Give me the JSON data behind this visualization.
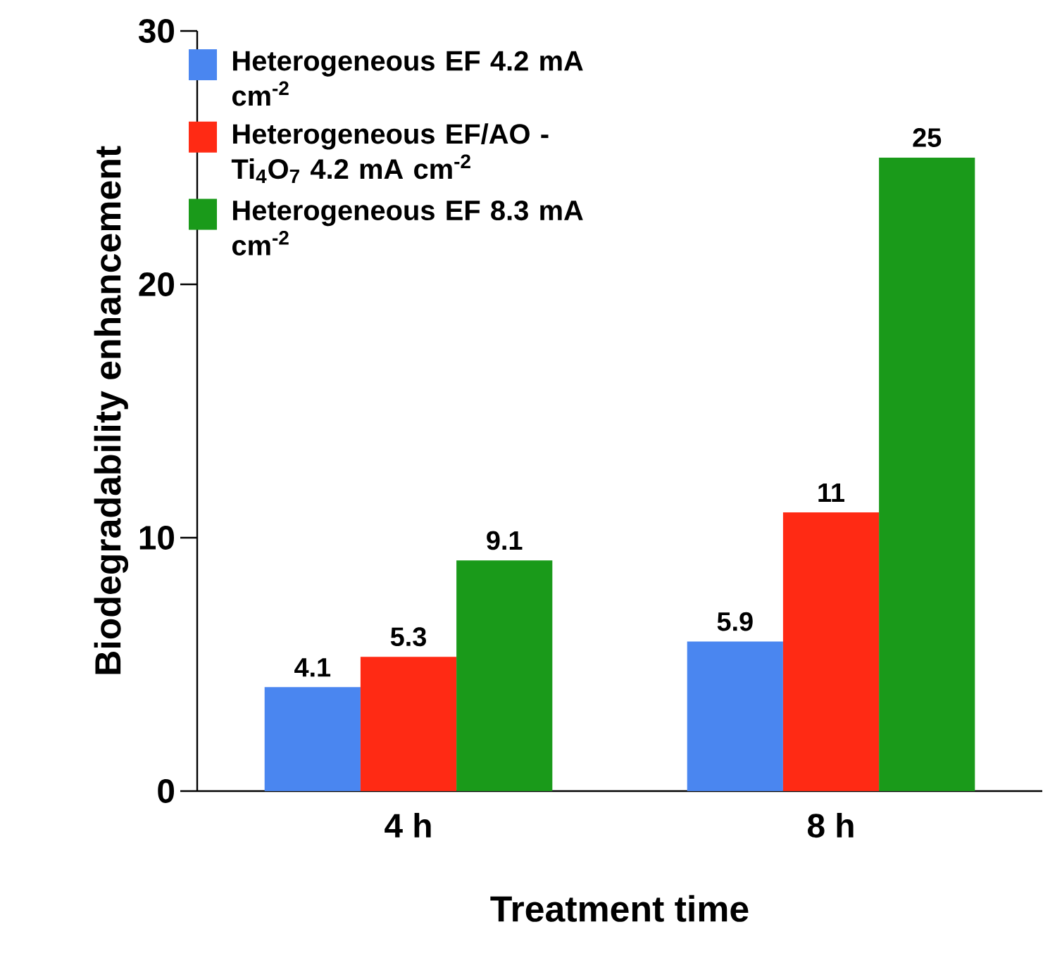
{
  "chart_data": {
    "type": "bar",
    "xlabel": "Treatment time",
    "ylabel": "Biodegradability enhancement",
    "categories": [
      "4 h",
      "8 h"
    ],
    "series": [
      {
        "name": "Heterogeneous EF 4.2 mA cm$^{-2}$",
        "color": "#4a86f0",
        "values": [
          4.1,
          5.9
        ]
      },
      {
        "name": "Heterogeneous EF/AO - Ti$_{4}$O$_{7}$ 4.2 mA cm$^{-2}$",
        "color": "#ff2a14",
        "values": [
          5.3,
          11
        ]
      },
      {
        "name": "Heterogeneous EF 8.3 mA cm$^{-2}$",
        "color": "#1a9a1a",
        "values": [
          9.1,
          25
        ]
      }
    ],
    "ylim": [
      0,
      30
    ],
    "yticks": [
      0,
      10,
      20,
      30
    ],
    "data_labels": true,
    "legend": "top left",
    "grid": false
  }
}
